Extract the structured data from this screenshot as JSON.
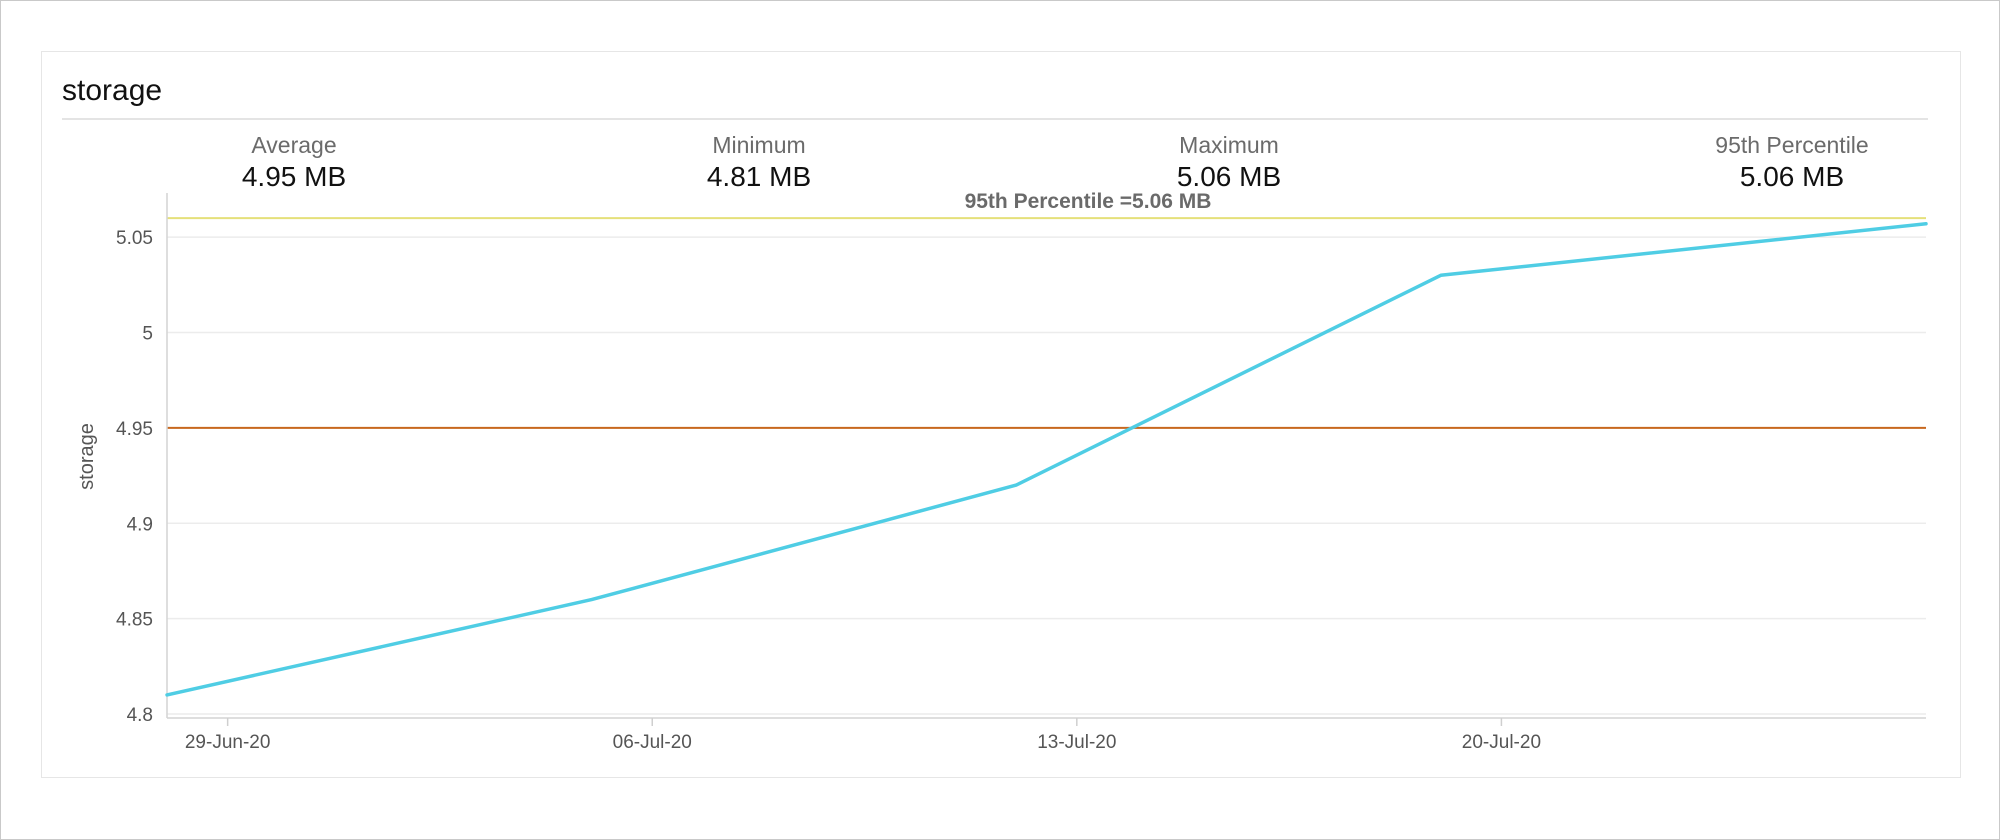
{
  "panel": {
    "title": "storage"
  },
  "stats": [
    {
      "label": "Average",
      "value": "4.95 MB"
    },
    {
      "label": "Minimum",
      "value": "4.81 MB"
    },
    {
      "label": "Maximum",
      "value": "5.06 MB"
    },
    {
      "label": "95th Percentile",
      "value": "5.06 MB"
    }
  ],
  "chart_data": {
    "type": "line",
    "title": "",
    "xlabel": "",
    "ylabel": "storage",
    "ylim": [
      4.8,
      5.07
    ],
    "yticks": [
      4.8,
      4.85,
      4.9,
      4.95,
      5,
      5.05
    ],
    "ytick_labels": [
      "4.8",
      "4.85",
      "4.9",
      "4.95",
      "5",
      "5.05"
    ],
    "xlim": [
      "2020-06-28",
      "2020-07-27"
    ],
    "xticks": [
      {
        "date": "2020-06-29",
        "label": "29-Jun-20"
      },
      {
        "date": "2020-07-06",
        "label": "06-Jul-20"
      },
      {
        "date": "2020-07-13",
        "label": "13-Jul-20"
      },
      {
        "date": "2020-07-20",
        "label": "20-Jul-20"
      }
    ],
    "series": [
      {
        "color": "#4fcde4",
        "points": [
          {
            "x": "2020-06-28",
            "y": 4.81
          },
          {
            "x": "2020-07-05",
            "y": 4.86
          },
          {
            "x": "2020-07-12",
            "y": 4.92
          },
          {
            "x": "2020-07-19",
            "y": 5.03
          },
          {
            "x": "2020-07-27",
            "y": 5.057
          }
        ]
      }
    ],
    "reference_lines": [
      {
        "y": 5.06,
        "color": "#e5e07a",
        "label": "95th Percentile =5.06 MB"
      },
      {
        "y": 4.95,
        "color": "#c8681e",
        "label": ""
      }
    ],
    "grid": true,
    "legend": "none"
  }
}
